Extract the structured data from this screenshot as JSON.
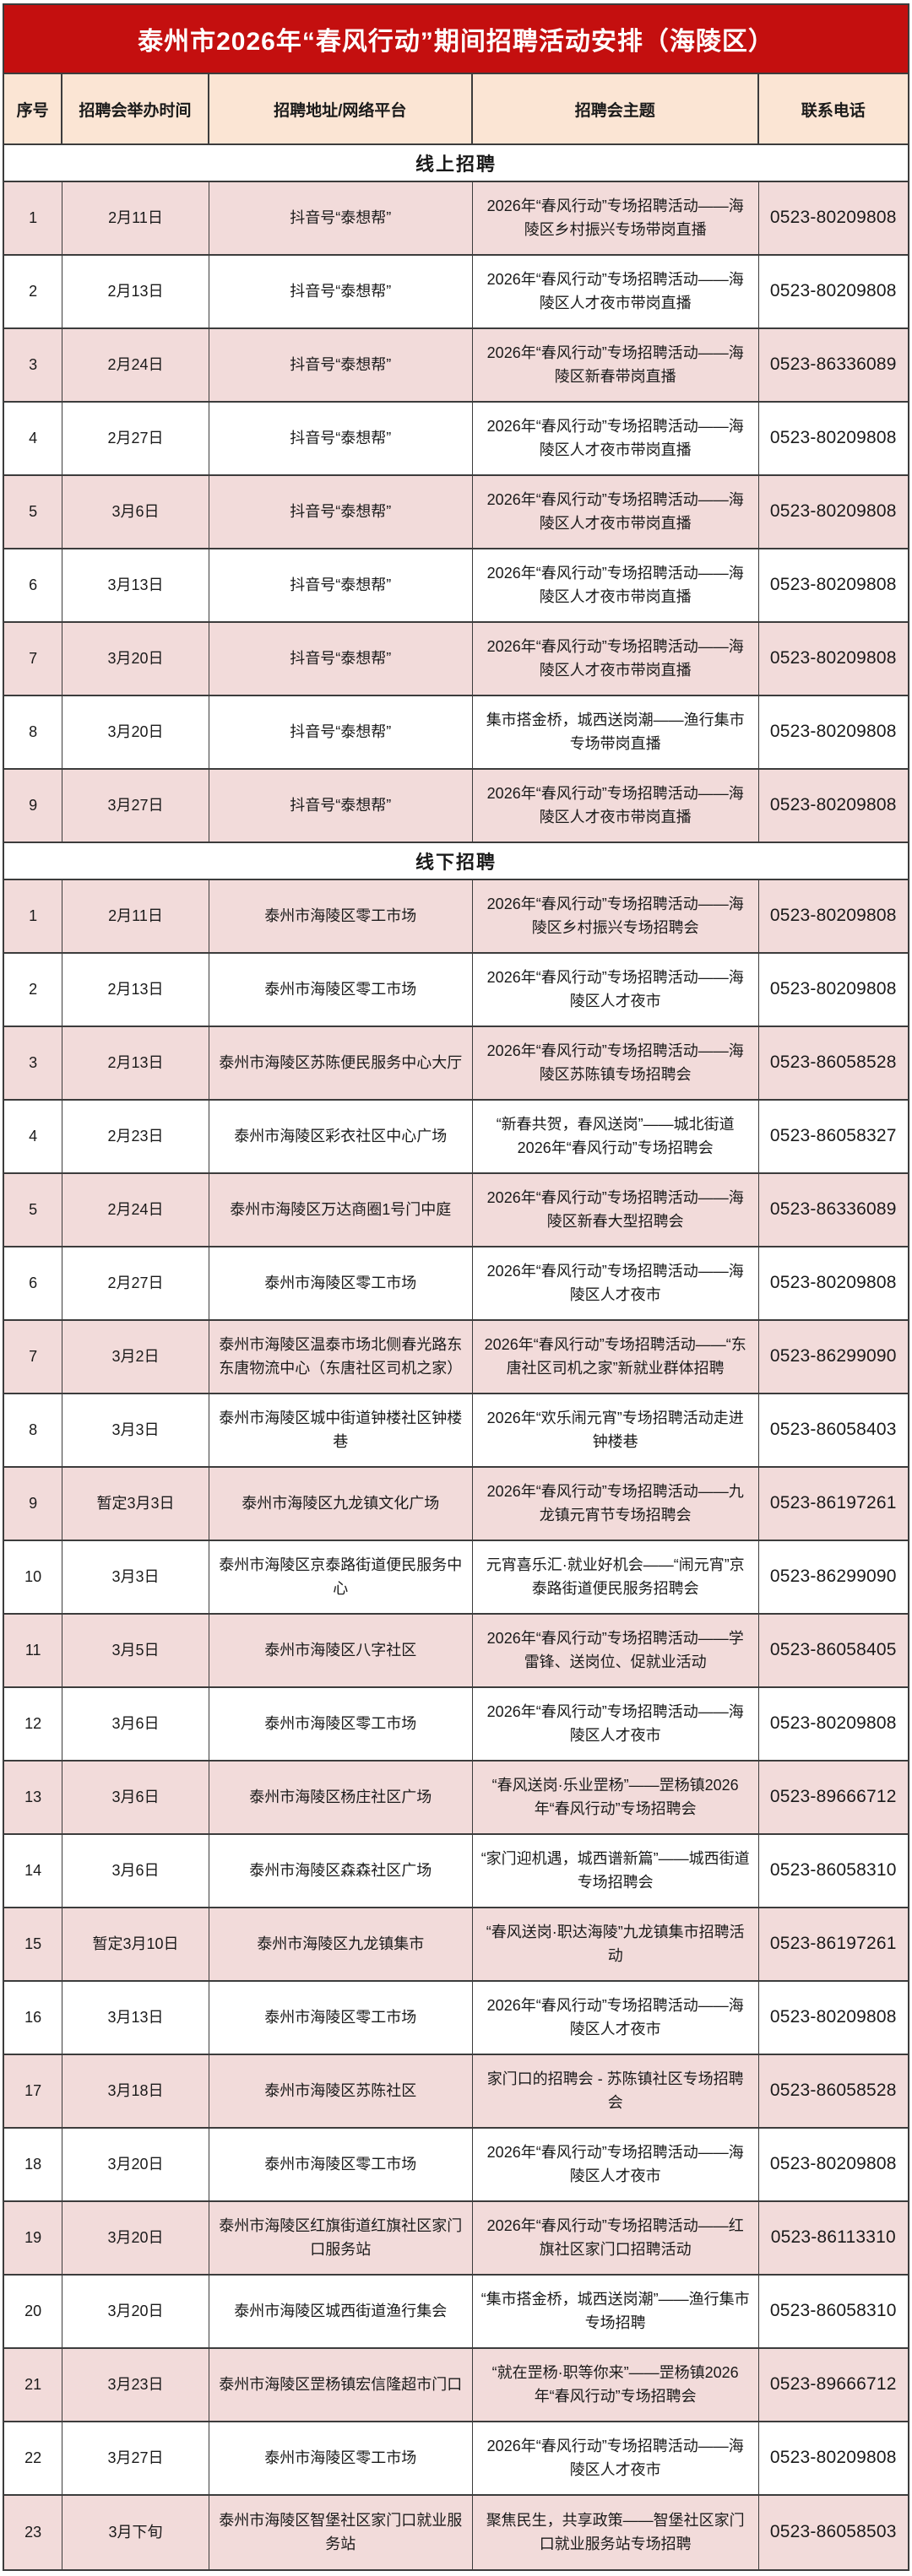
{
  "title": "泰州市2026年“春风行动”期间招聘活动安排（海陵区）",
  "columns": [
    "序号",
    "招聘会举办时间",
    "招聘地址/网络平台",
    "招聘会主题",
    "联系电话"
  ],
  "colors": {
    "title_background": "#c40f0f",
    "title_text": "#ffffff",
    "header_background": "#fbe5d4",
    "odd_row_background": "#f2dbda",
    "even_row_background": "#ffffff",
    "border": "#3c3c3c"
  },
  "sections": [
    {
      "label": "线上招聘",
      "rows": [
        {
          "no": "1",
          "date": "2月11日",
          "venue": "抖音号“泰想帮”",
          "theme": "2026年“春风行动”专场招聘活动——海陵区乡村振兴专场带岗直播",
          "phone": "0523-80209808"
        },
        {
          "no": "2",
          "date": "2月13日",
          "venue": "抖音号“泰想帮”",
          "theme": "2026年“春风行动”专场招聘活动——海陵区人才夜市带岗直播",
          "phone": "0523-80209808"
        },
        {
          "no": "3",
          "date": "2月24日",
          "venue": "抖音号“泰想帮”",
          "theme": "2026年“春风行动”专场招聘活动——海陵区新春带岗直播",
          "phone": "0523-86336089"
        },
        {
          "no": "4",
          "date": "2月27日",
          "venue": "抖音号“泰想帮”",
          "theme": "2026年“春风行动”专场招聘活动——海陵区人才夜市带岗直播",
          "phone": "0523-80209808"
        },
        {
          "no": "5",
          "date": "3月6日",
          "venue": "抖音号“泰想帮”",
          "theme": "2026年“春风行动”专场招聘活动——海陵区人才夜市带岗直播",
          "phone": "0523-80209808"
        },
        {
          "no": "6",
          "date": "3月13日",
          "venue": "抖音号“泰想帮”",
          "theme": "2026年“春风行动”专场招聘活动——海陵区人才夜市带岗直播",
          "phone": "0523-80209808"
        },
        {
          "no": "7",
          "date": "3月20日",
          "venue": "抖音号“泰想帮”",
          "theme": "2026年“春风行动”专场招聘活动——海陵区人才夜市带岗直播",
          "phone": "0523-80209808"
        },
        {
          "no": "8",
          "date": "3月20日",
          "venue": "抖音号“泰想帮”",
          "theme": "集市搭金桥，城西送岗潮——渔行集市专场带岗直播",
          "phone": "0523-80209808"
        },
        {
          "no": "9",
          "date": "3月27日",
          "venue": "抖音号“泰想帮”",
          "theme": "2026年“春风行动”专场招聘活动——海陵区人才夜市带岗直播",
          "phone": "0523-80209808"
        }
      ]
    },
    {
      "label": "线下招聘",
      "rows": [
        {
          "no": "1",
          "date": "2月11日",
          "venue": "泰州市海陵区零工市场",
          "theme": "2026年“春风行动”专场招聘活动——海陵区乡村振兴专场招聘会",
          "phone": "0523-80209808"
        },
        {
          "no": "2",
          "date": "2月13日",
          "venue": "泰州市海陵区零工市场",
          "theme": "2026年“春风行动”专场招聘活动——海陵区人才夜市",
          "phone": "0523-80209808"
        },
        {
          "no": "3",
          "date": "2月13日",
          "venue": "泰州市海陵区苏陈便民服务中心大厅",
          "theme": "2026年“春风行动”专场招聘活动——海陵区苏陈镇专场招聘会",
          "phone": "0523-86058528"
        },
        {
          "no": "4",
          "date": "2月23日",
          "venue": "泰州市海陵区彩衣社区中心广场",
          "theme": "“新春共贺，春风送岗”——城北街道2026年“春风行动”专场招聘会",
          "phone": "0523-86058327"
        },
        {
          "no": "5",
          "date": "2月24日",
          "venue": "泰州市海陵区万达商圈1号门中庭",
          "theme": "2026年“春风行动”专场招聘活动——海陵区新春大型招聘会",
          "phone": "0523-86336089"
        },
        {
          "no": "6",
          "date": "2月27日",
          "venue": "泰州市海陵区零工市场",
          "theme": "2026年“春风行动”专场招聘活动——海陵区人才夜市",
          "phone": "0523-80209808"
        },
        {
          "no": "7",
          "date": "3月2日",
          "venue": "泰州市海陵区温泰市场北侧春光路东东唐物流中心（东唐社区司机之家）",
          "theme": "2026年“春风行动”专场招聘活动——“东唐社区司机之家”新就业群体招聘",
          "phone": "0523-86299090"
        },
        {
          "no": "8",
          "date": "3月3日",
          "venue": "泰州市海陵区城中街道钟楼社区钟楼巷",
          "theme": "2026年“欢乐闹元宵”专场招聘活动走进钟楼巷",
          "phone": "0523-86058403"
        },
        {
          "no": "9",
          "date": "暂定3月3日",
          "venue": "泰州市海陵区九龙镇文化广场",
          "theme": "2026年“春风行动”专场招聘活动——九龙镇元宵节专场招聘会",
          "phone": "0523-86197261"
        },
        {
          "no": "10",
          "date": "3月3日",
          "venue": "泰州市海陵区京泰路街道便民服务中心",
          "theme": "元宵喜乐汇·就业好机会——“闹元宵”京泰路街道便民服务招聘会",
          "phone": "0523-86299090"
        },
        {
          "no": "11",
          "date": "3月5日",
          "venue": "泰州市海陵区八字社区",
          "theme": "2026年“春风行动”专场招聘活动——学雷锋、送岗位、促就业活动",
          "phone": "0523-86058405"
        },
        {
          "no": "12",
          "date": "3月6日",
          "venue": "泰州市海陵区零工市场",
          "theme": "2026年“春风行动”专场招聘活动——海陵区人才夜市",
          "phone": "0523-80209808"
        },
        {
          "no": "13",
          "date": "3月6日",
          "venue": "泰州市海陵区杨庄社区广场",
          "theme": "“春风送岗·乐业罡杨”——罡杨镇2026年“春风行动”专场招聘会",
          "phone": "0523-89666712"
        },
        {
          "no": "14",
          "date": "3月6日",
          "venue": "泰州市海陵区森森社区广场",
          "theme": "“家门迎机遇，城西谱新篇”——城西街道专场招聘会",
          "phone": "0523-86058310"
        },
        {
          "no": "15",
          "date": "暂定3月10日",
          "venue": "泰州市海陵区九龙镇集市",
          "theme": "“春风送岗·职达海陵”九龙镇集市招聘活动",
          "phone": "0523-86197261"
        },
        {
          "no": "16",
          "date": "3月13日",
          "venue": "泰州市海陵区零工市场",
          "theme": "2026年“春风行动”专场招聘活动——海陵区人才夜市",
          "phone": "0523-80209808"
        },
        {
          "no": "17",
          "date": "3月18日",
          "venue": "泰州市海陵区苏陈社区",
          "theme": "家门口的招聘会 - 苏陈镇社区专场招聘会",
          "phone": "0523-86058528"
        },
        {
          "no": "18",
          "date": "3月20日",
          "venue": "泰州市海陵区零工市场",
          "theme": "2026年“春风行动”专场招聘活动——海陵区人才夜市",
          "phone": "0523-80209808"
        },
        {
          "no": "19",
          "date": "3月20日",
          "venue": "泰州市海陵区红旗街道红旗社区家门口服务站",
          "theme": "2026年“春风行动”专场招聘活动——红旗社区家门口招聘活动",
          "phone": "0523-86113310"
        },
        {
          "no": "20",
          "date": "3月20日",
          "venue": "泰州市海陵区城西街道渔行集会",
          "theme": "“集市搭金桥，城西送岗潮”——渔行集市专场招聘",
          "phone": "0523-86058310"
        },
        {
          "no": "21",
          "date": "3月23日",
          "venue": "泰州市海陵区罡杨镇宏信隆超市门口",
          "theme": "“就在罡杨·职等你来”——罡杨镇2026年“春风行动”专场招聘会",
          "phone": "0523-89666712"
        },
        {
          "no": "22",
          "date": "3月27日",
          "venue": "泰州市海陵区零工市场",
          "theme": "2026年“春风行动”专场招聘活动——海陵区人才夜市",
          "phone": "0523-80209808"
        },
        {
          "no": "23",
          "date": "3月下旬",
          "venue": "泰州市海陵区智堡社区家门口就业服务站",
          "theme": "聚焦民生，共享政策——智堡社区家门口就业服务站专场招聘",
          "phone": "0523-86058503"
        }
      ]
    }
  ]
}
